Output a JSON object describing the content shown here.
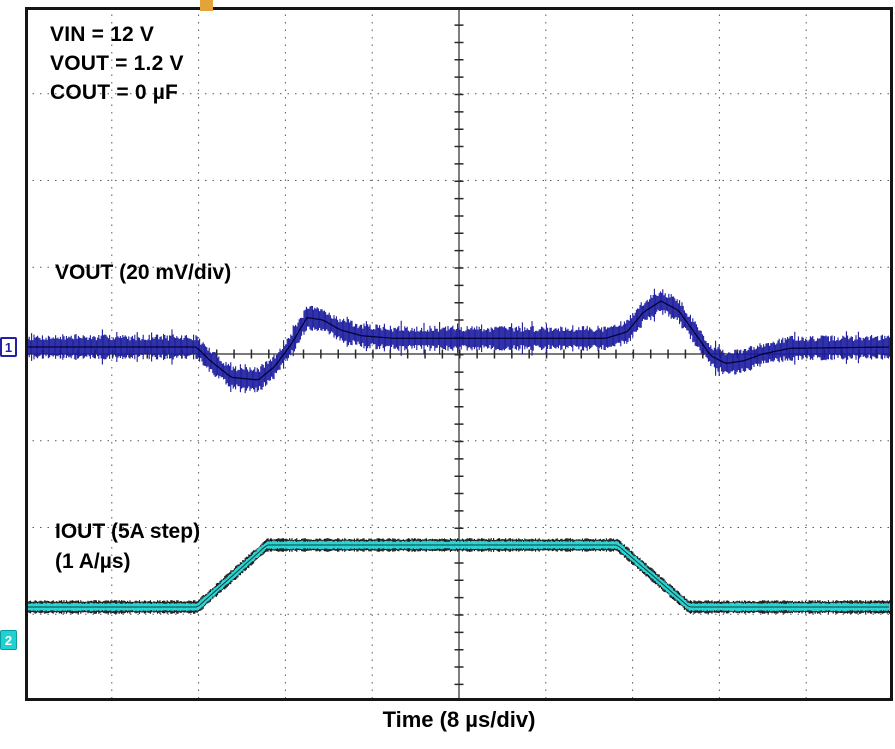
{
  "figure": {
    "annotations": [
      "VIN = 12 V",
      "VOUT = 1.2 V",
      "COUT = 0 µF"
    ],
    "vout_trace_label": "VOUT (20 mV/div)",
    "iout_trace_label_1": "IOUT (5A step)",
    "iout_trace_label_2": "(1 A/µs)",
    "time_axis_label": "Time (8 µs/div)",
    "channel_markers": {
      "ch1": "1",
      "ch2": "2"
    },
    "colors": {
      "vout_trace": "#1b1b9e",
      "vout_core": "#03033a",
      "iout_trace": "#2ae2e2",
      "iout_edge": "#101010",
      "grid_dots": "#5a5a5a",
      "center_lines": "#2a2a2a",
      "border": "#151515",
      "trigger": "#e2a339"
    }
  },
  "chart_data": {
    "type": "line",
    "xlabel": "Time (8 µs/div)",
    "time_per_div_us": 8,
    "divisions": {
      "x": 10,
      "y": 8
    },
    "x_range_us": [
      0,
      80
    ],
    "grid": "dotted with solid center crosshair and tick marks",
    "series": [
      {
        "name": "VOUT",
        "label": "VOUT (20 mV/div)",
        "units": "mV",
        "scale_per_div": 20,
        "channel": 1,
        "noise_mv_halfband": 2.2,
        "points": [
          [
            0,
            0
          ],
          [
            15.8,
            0
          ],
          [
            17,
            -3
          ],
          [
            19,
            -7
          ],
          [
            21.5,
            -7.6
          ],
          [
            23,
            -4.5
          ],
          [
            24.5,
            0.5
          ],
          [
            26,
            6.8
          ],
          [
            27.5,
            6.2
          ],
          [
            29,
            4
          ],
          [
            31,
            2.6
          ],
          [
            34,
            2
          ],
          [
            53.5,
            2
          ],
          [
            55.5,
            3.5
          ],
          [
            57,
            8
          ],
          [
            58.6,
            10.6
          ],
          [
            60.2,
            8.5
          ],
          [
            61.8,
            3
          ],
          [
            63.2,
            -2
          ],
          [
            64.6,
            -3.8
          ],
          [
            66.2,
            -3.2
          ],
          [
            68,
            -1.6
          ],
          [
            70.5,
            -0.3
          ],
          [
            80,
            0
          ]
        ]
      },
      {
        "name": "IOUT",
        "label": "IOUT (5A step) (1 A/µs)",
        "units": "A",
        "step_a": 5,
        "slew_rate": "1 A/µs",
        "channel": 2,
        "noise_a_halfband": 0.35,
        "points": [
          [
            0,
            0
          ],
          [
            15.9,
            0
          ],
          [
            22.3,
            5
          ],
          [
            54.6,
            5
          ],
          [
            61.2,
            0
          ],
          [
            80,
            0
          ]
        ]
      }
    ]
  }
}
